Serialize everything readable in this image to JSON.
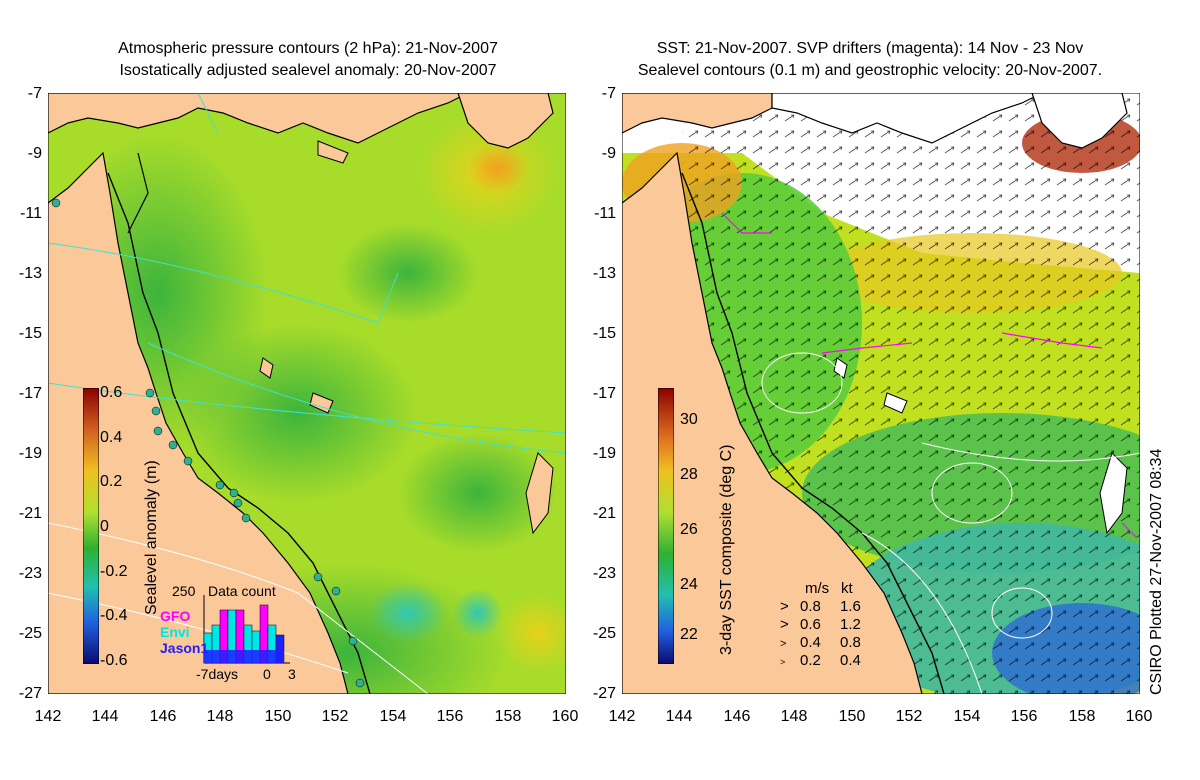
{
  "left_panel": {
    "title_line1": "Atmospheric pressure contours (2 hPa): 21-Nov-2007",
    "title_line2": "Isostatically adjusted sealevel anomaly: 20-Nov-2007",
    "colorbar_label": "Sealevel anomaly (m)",
    "colorbar_ticks": [
      "0.6",
      "0.4",
      "0.2",
      "0",
      "-0.2",
      "-0.4",
      "-0.6"
    ],
    "histogram": {
      "title": "Data count",
      "ymax_label": "250",
      "legend": [
        {
          "name": "GFO",
          "color": "#ff00ff"
        },
        {
          "name": "Envi",
          "color": "#00e5e5"
        },
        {
          "name": "Jason1",
          "color": "#2020ff"
        }
      ],
      "xlabels": [
        "-7days",
        "0",
        "3"
      ]
    }
  },
  "right_panel": {
    "title_line1": "SST: 21-Nov-2007. SVP drifters (magenta): 14 Nov - 23 Nov",
    "title_line2": "Sealevel contours (0.1 m) and geostrophic velocity: 20-Nov-2007.",
    "colorbar_label": "3-day SST composite (deg C)",
    "colorbar_ticks": [
      "30",
      "28",
      "26",
      "24",
      "22"
    ],
    "velocity_legend": {
      "header_ms": "m/s",
      "header_kt": "kt",
      "rows": [
        {
          "ms": "0.8",
          "kt": "1.6"
        },
        {
          "ms": "0.6",
          "kt": "1.2"
        },
        {
          "ms": "0.4",
          "kt": "0.8"
        },
        {
          "ms": "0.2",
          "kt": "0.4"
        }
      ]
    }
  },
  "y_axis_labels": [
    "-7",
    "-9",
    "-11",
    "-13",
    "-15",
    "-17",
    "-19",
    "-21",
    "-23",
    "-25",
    "-27"
  ],
  "x_axis_labels": [
    "142",
    "144",
    "146",
    "148",
    "150",
    "152",
    "154",
    "156",
    "158",
    "160"
  ],
  "plot_credit": "CSIRO Plotted 27-Nov-2007 08:34",
  "colors": {
    "land": "#fbc89a",
    "ocean_green": "#5ccc3a",
    "ocean_yellow": "#c8e81a"
  }
}
